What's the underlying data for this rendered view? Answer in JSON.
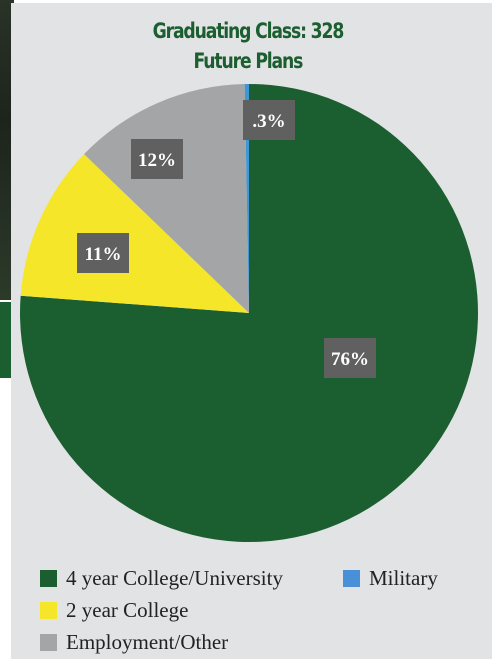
{
  "title_line1": "Graduating Class: 328",
  "title_line2": "Future Plans",
  "chart_data": {
    "type": "pie",
    "title": "Graduating Class: 328 Future Plans",
    "slices": [
      {
        "name": "4 year College/University",
        "value": 76.2,
        "label": "76%",
        "color": "#1b5e30"
      },
      {
        "name": "2 year College",
        "value": 11,
        "label": "11%",
        "color": "#f5e62a"
      },
      {
        "name": "Employment/Other",
        "value": 12.5,
        "label": "12%",
        "color": "#a4a5a7"
      },
      {
        "name": "Military",
        "value": 0.3,
        "label": ".3%",
        "color": "#3f97d4"
      }
    ],
    "start_angle_deg": 0,
    "direction": "clockwise-from-top",
    "legend_position": "bottom"
  },
  "legend": [
    {
      "label": "4 year College/University",
      "color": "#1b5e30"
    },
    {
      "label": "Military",
      "color": "#4a90d9"
    },
    {
      "label": "2 year College",
      "color": "#f5e62a"
    },
    {
      "label": "Employment/Other",
      "color": "#a4a5a7"
    }
  ]
}
